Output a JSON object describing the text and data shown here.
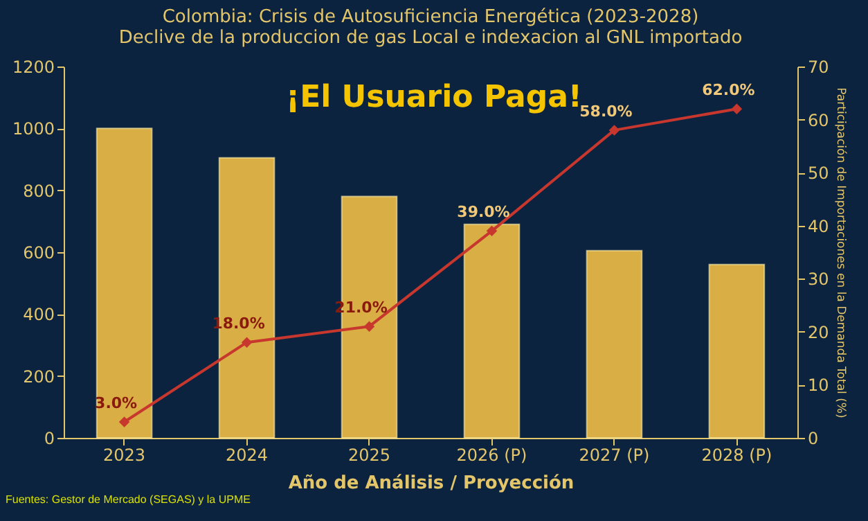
{
  "chart_data": {
    "type": "bar",
    "title": "Colombia: Crisis de Autosuficiencia Energética (2023-2028)",
    "subtitle": "Declive de la produccion de gas Local e indexacion al GNL importado",
    "xlabel": "Año de Análisis / Proyección",
    "y2label": "Participación de Importaciones en la Demanda Total (%)",
    "annotations": [
      "¡El Usuario Paga!",
      "Fuentes: Gestor de Mercado (SEGAS) y la UPME"
    ],
    "categories": [
      "2023",
      "2024",
      "2025",
      "2026 (P)",
      "2027 (P)",
      "2028 (P)"
    ],
    "series": [
      {
        "color": "#d9ae45",
        "values": [
          1000,
          905,
          780,
          690,
          605,
          560
        ]
      },
      {
        "type": "line",
        "axis": "y2",
        "color": "#c8372d",
        "values": [
          3.0,
          18.0,
          21.0,
          39.0,
          58.0,
          62.0
        ],
        "value_labels": [
          "3.0%",
          "18.0%",
          "21.0%",
          "39.0%",
          "58.0%",
          "62.0%"
        ]
      }
    ],
    "ylim": [
      0,
      1200
    ],
    "yticks": [
      0,
      200,
      400,
      600,
      800,
      1000,
      1200
    ],
    "y2lim": [
      0,
      70
    ],
    "y2ticks": [
      0,
      10,
      20,
      30,
      40,
      50,
      60,
      70
    ],
    "grid": false,
    "marker": "diamond",
    "line_style": "solid"
  }
}
